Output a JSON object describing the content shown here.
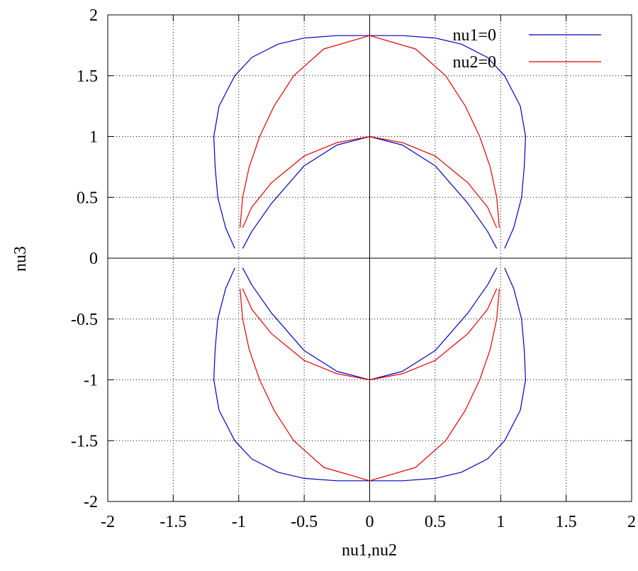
{
  "chart_data": {
    "type": "line",
    "title": "",
    "xlabel": "nu1,nu2",
    "ylabel": "nu3",
    "xlim": [
      -2,
      2
    ],
    "ylim": [
      -2,
      2
    ],
    "xticks": [
      "-2",
      "-1.5",
      "-1",
      "-0.5",
      "0",
      "0.5",
      "1",
      "1.5",
      "2"
    ],
    "yticks": [
      "2",
      "1.5",
      "1",
      "0.5",
      "0",
      "-0.5",
      "-1",
      "-1.5",
      "-2"
    ],
    "grid": true,
    "legend_position": "top-right",
    "series": [
      {
        "name": "nu1=0",
        "color": "#0000c0",
        "branches": [
          [
            [
              -1.03,
              0.08
            ],
            [
              -1.1,
              0.25
            ],
            [
              -1.16,
              0.5
            ],
            [
              -1.18,
              0.75
            ],
            [
              -1.19,
              1.0
            ],
            [
              -1.15,
              1.25
            ],
            [
              -1.03,
              1.5
            ],
            [
              -0.9,
              1.65
            ],
            [
              -0.7,
              1.76
            ],
            [
              -0.5,
              1.81
            ],
            [
              -0.25,
              1.83
            ],
            [
              0,
              1.83
            ],
            [
              0.25,
              1.83
            ],
            [
              0.5,
              1.81
            ],
            [
              0.7,
              1.76
            ],
            [
              0.9,
              1.65
            ],
            [
              1.03,
              1.5
            ],
            [
              1.15,
              1.25
            ],
            [
              1.19,
              1.0
            ],
            [
              1.18,
              0.75
            ],
            [
              1.16,
              0.5
            ],
            [
              1.1,
              0.25
            ],
            [
              1.03,
              0.08
            ]
          ],
          [
            [
              -0.97,
              0.08
            ],
            [
              -0.9,
              0.22
            ],
            [
              -0.75,
              0.45
            ],
            [
              -0.5,
              0.76
            ],
            [
              -0.25,
              0.93
            ],
            [
              0,
              1.0
            ],
            [
              0.25,
              0.93
            ],
            [
              0.5,
              0.76
            ],
            [
              0.75,
              0.45
            ],
            [
              0.9,
              0.22
            ],
            [
              0.97,
              0.08
            ]
          ],
          [
            [
              -1.03,
              -0.08
            ],
            [
              -1.1,
              -0.25
            ],
            [
              -1.16,
              -0.5
            ],
            [
              -1.18,
              -0.75
            ],
            [
              -1.19,
              -1.0
            ],
            [
              -1.15,
              -1.25
            ],
            [
              -1.03,
              -1.5
            ],
            [
              -0.9,
              -1.65
            ],
            [
              -0.7,
              -1.76
            ],
            [
              -0.5,
              -1.81
            ],
            [
              -0.25,
              -1.83
            ],
            [
              0,
              -1.83
            ],
            [
              0.25,
              -1.83
            ],
            [
              0.5,
              -1.81
            ],
            [
              0.7,
              -1.76
            ],
            [
              0.9,
              -1.65
            ],
            [
              1.03,
              -1.5
            ],
            [
              1.15,
              -1.25
            ],
            [
              1.19,
              -1.0
            ],
            [
              1.18,
              -0.75
            ],
            [
              1.16,
              -0.5
            ],
            [
              1.1,
              -0.25
            ],
            [
              1.03,
              -0.08
            ]
          ],
          [
            [
              -0.97,
              -0.08
            ],
            [
              -0.9,
              -0.22
            ],
            [
              -0.75,
              -0.45
            ],
            [
              -0.5,
              -0.76
            ],
            [
              -0.25,
              -0.93
            ],
            [
              0,
              -1.0
            ],
            [
              0.25,
              -0.93
            ],
            [
              0.5,
              -0.76
            ],
            [
              0.75,
              -0.45
            ],
            [
              0.9,
              -0.22
            ],
            [
              0.97,
              -0.08
            ]
          ]
        ]
      },
      {
        "name": "nu2=0",
        "color": "#e00000",
        "branches": [
          [
            [
              -0.99,
              0.25
            ],
            [
              -0.97,
              0.5
            ],
            [
              -0.92,
              0.75
            ],
            [
              -0.84,
              1.0
            ],
            [
              -0.73,
              1.25
            ],
            [
              -0.58,
              1.5
            ],
            [
              -0.35,
              1.72
            ],
            [
              0,
              1.83
            ],
            [
              0.35,
              1.72
            ],
            [
              0.58,
              1.5
            ],
            [
              0.73,
              1.25
            ],
            [
              0.84,
              1.0
            ],
            [
              0.92,
              0.75
            ],
            [
              0.97,
              0.5
            ],
            [
              0.99,
              0.25
            ]
          ],
          [
            [
              -0.97,
              0.25
            ],
            [
              -0.9,
              0.42
            ],
            [
              -0.75,
              0.62
            ],
            [
              -0.5,
              0.84
            ],
            [
              -0.25,
              0.95
            ],
            [
              0,
              1.0
            ],
            [
              0.25,
              0.95
            ],
            [
              0.5,
              0.84
            ],
            [
              0.75,
              0.62
            ],
            [
              0.9,
              0.42
            ],
            [
              0.97,
              0.25
            ]
          ],
          [
            [
              -0.99,
              -0.25
            ],
            [
              -0.97,
              -0.5
            ],
            [
              -0.92,
              -0.75
            ],
            [
              -0.84,
              -1.0
            ],
            [
              -0.73,
              -1.25
            ],
            [
              -0.58,
              -1.5
            ],
            [
              -0.35,
              -1.72
            ],
            [
              0,
              -1.83
            ],
            [
              0.35,
              -1.72
            ],
            [
              0.58,
              -1.5
            ],
            [
              0.73,
              -1.25
            ],
            [
              0.84,
              -1.0
            ],
            [
              0.92,
              -0.75
            ],
            [
              0.97,
              -0.5
            ],
            [
              0.99,
              -0.25
            ]
          ],
          [
            [
              -0.97,
              -0.25
            ],
            [
              -0.9,
              -0.42
            ],
            [
              -0.75,
              -0.62
            ],
            [
              -0.5,
              -0.84
            ],
            [
              -0.25,
              -0.95
            ],
            [
              0,
              -1.0
            ],
            [
              0.25,
              -0.95
            ],
            [
              0.5,
              -0.84
            ],
            [
              0.75,
              -0.62
            ],
            [
              0.9,
              -0.42
            ],
            [
              0.97,
              -0.25
            ]
          ]
        ]
      }
    ]
  }
}
